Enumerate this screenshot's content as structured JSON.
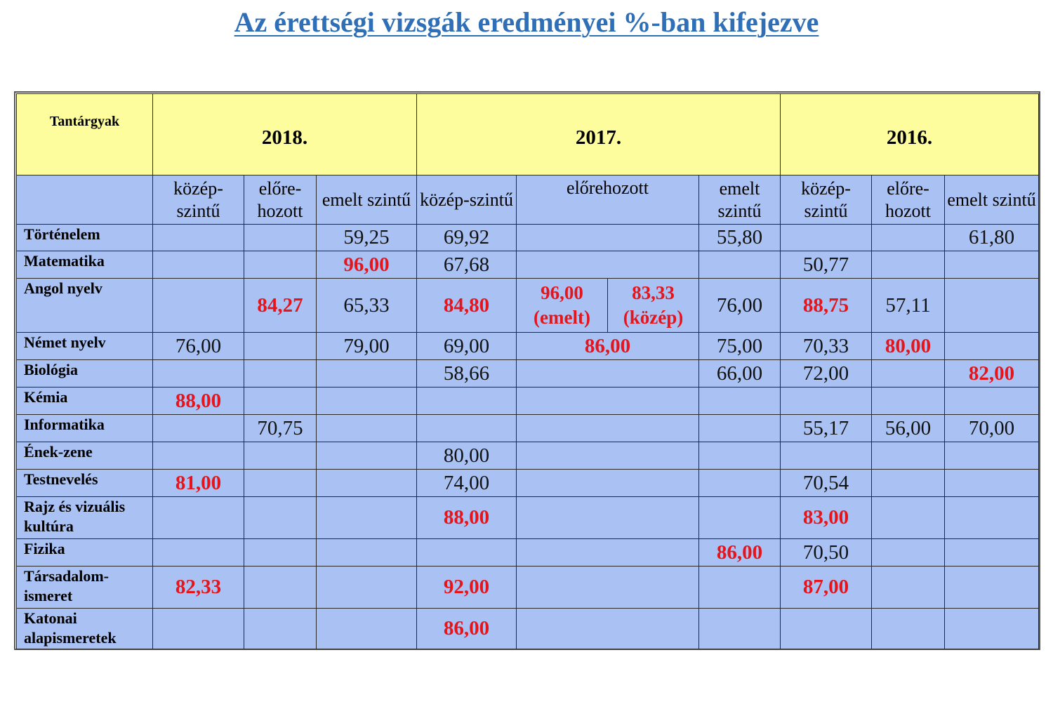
{
  "title": "Az érettségi vizsgák eredményei %-ban kifejezve",
  "header": {
    "subjects_label": "Tantárgyak",
    "years": [
      "2018.",
      "2017.",
      "2016."
    ]
  },
  "levels": {
    "kozep": "közép-szintű",
    "elore": "előre-hozott",
    "elorehozott_2017": "előrehozott",
    "emelt": "emelt szintű"
  },
  "colors": {
    "title": "#2e6fb7",
    "header_bg": "#fdfd9e",
    "body_bg": "#a9c2f3",
    "highlight": "#e6141b"
  },
  "rows": [
    {
      "subject": "Történelem",
      "v2018_kozep": "",
      "v2018_elore": "",
      "v2018_emelt": "59,25",
      "v2017_kozep": "69,92",
      "v2017_elore": "",
      "v2017_emelt": "55,80",
      "v2016_kozep": "",
      "v2016_elore": "",
      "v2016_emelt": "61,80"
    },
    {
      "subject": "Matematika",
      "v2018_kozep": "",
      "v2018_elore": "",
      "v2018_emelt": "96,00",
      "v2017_kozep": "67,68",
      "v2017_elore": "",
      "v2017_emelt": "",
      "v2016_kozep": "50,77",
      "v2016_elore": "",
      "v2016_emelt": ""
    },
    {
      "subject": "Angol nyelv",
      "v2018_kozep": "",
      "v2018_elore": "84,27",
      "v2018_emelt": "65,33",
      "v2017_kozep": "84,80",
      "v2017_elore_emelt": "96,00",
      "v2017_elore_emelt_note": "(emelt)",
      "v2017_elore_kozep": "83,33",
      "v2017_elore_kozep_note": "(közép)",
      "v2017_emelt": "76,00",
      "v2016_kozep": "88,75",
      "v2016_elore": "57,11",
      "v2016_emelt": ""
    },
    {
      "subject": "Német nyelv",
      "v2018_kozep": "76,00",
      "v2018_elore": "",
      "v2018_emelt": "79,00",
      "v2017_kozep": "69,00",
      "v2017_elore": "86,00",
      "v2017_emelt": "75,00",
      "v2016_kozep": "70,33",
      "v2016_elore": "80,00",
      "v2016_emelt": ""
    },
    {
      "subject": "Biológia",
      "v2018_kozep": "",
      "v2018_elore": "",
      "v2018_emelt": "",
      "v2017_kozep": "58,66",
      "v2017_elore": "",
      "v2017_emelt": "66,00",
      "v2016_kozep": "72,00",
      "v2016_elore": "",
      "v2016_emelt": "82,00"
    },
    {
      "subject": "Kémia",
      "v2018_kozep": "88,00",
      "v2018_elore": "",
      "v2018_emelt": "",
      "v2017_kozep": "",
      "v2017_elore": "",
      "v2017_emelt": "",
      "v2016_kozep": "",
      "v2016_elore": "",
      "v2016_emelt": ""
    },
    {
      "subject": "Informatika",
      "v2018_kozep": "",
      "v2018_elore": "70,75",
      "v2018_emelt": "",
      "v2017_kozep": "",
      "v2017_elore": "",
      "v2017_emelt": "",
      "v2016_kozep": "55,17",
      "v2016_elore": "56,00",
      "v2016_emelt": "70,00"
    },
    {
      "subject": "Ének-zene",
      "v2018_kozep": "",
      "v2018_elore": "",
      "v2018_emelt": "",
      "v2017_kozep": "80,00",
      "v2017_elore": "",
      "v2017_emelt": "",
      "v2016_kozep": "",
      "v2016_elore": "",
      "v2016_emelt": ""
    },
    {
      "subject": "Testnevelés",
      "v2018_kozep": "81,00",
      "v2018_elore": "",
      "v2018_emelt": "",
      "v2017_kozep": "74,00",
      "v2017_elore": "",
      "v2017_emelt": "",
      "v2016_kozep": "70,54",
      "v2016_elore": "",
      "v2016_emelt": ""
    },
    {
      "subject": "Rajz és vizuális kultúra",
      "v2018_kozep": "",
      "v2018_elore": "",
      "v2018_emelt": "",
      "v2017_kozep": "88,00",
      "v2017_elore": "",
      "v2017_emelt": "",
      "v2016_kozep": "83,00",
      "v2016_elore": "",
      "v2016_emelt": ""
    },
    {
      "subject": "Fizika",
      "v2018_kozep": "",
      "v2018_elore": "",
      "v2018_emelt": "",
      "v2017_kozep": "",
      "v2017_elore": "",
      "v2017_emelt": "86,00",
      "v2016_kozep": "70,50",
      "v2016_elore": "",
      "v2016_emelt": ""
    },
    {
      "subject": "Társadalom-ismeret",
      "v2018_kozep": "82,33",
      "v2018_elore": "",
      "v2018_emelt": "",
      "v2017_kozep": "92,00",
      "v2017_elore": "",
      "v2017_emelt": "",
      "v2016_kozep": "87,00",
      "v2016_elore": "",
      "v2016_emelt": ""
    },
    {
      "subject": "Katonai alapismeretek",
      "v2018_kozep": "",
      "v2018_elore": "",
      "v2018_emelt": "",
      "v2017_kozep": "86,00",
      "v2017_elore": "",
      "v2017_emelt": "",
      "v2016_kozep": "",
      "v2016_elore": "",
      "v2016_emelt": ""
    }
  ]
}
